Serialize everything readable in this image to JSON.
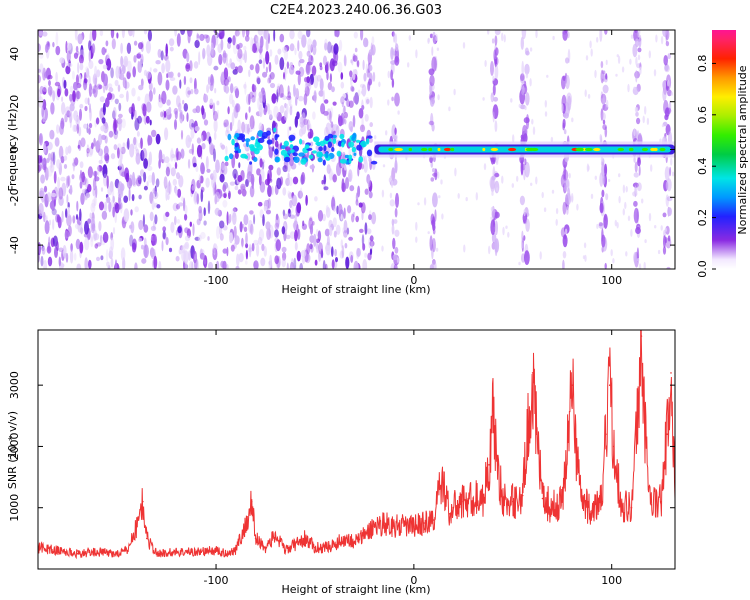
{
  "title": "C2E4.2023.240.06.36.G03",
  "chart_data": [
    {
      "type": "heatmap",
      "xlabel": "Height of straight line (km)",
      "ylabel": "Frequency (Hz)",
      "xlim": [
        -190,
        132
      ],
      "ylim": [
        -50,
        50
      ],
      "xticks": [
        -100,
        0,
        100
      ],
      "yticks": [
        -40,
        -20,
        0,
        20,
        40
      ],
      "colorbar": {
        "label": "Normalized spectral amplitude",
        "range": [
          0,
          0.93
        ],
        "ticks": [
          0.0,
          0.2,
          0.4,
          0.6,
          0.8
        ]
      },
      "features": {
        "broadband_noise_x_range": [
          -190,
          -20
        ],
        "carrier_line_frequency": 0,
        "carrier_x_range": [
          -20,
          132
        ],
        "vertical_stripe_x": [
          -10,
          10,
          41,
          56,
          77,
          96,
          113,
          128
        ]
      }
    },
    {
      "type": "line",
      "xlabel": "Height of straight line (km)",
      "ylabel": "SNR (10 * v/v)",
      "xlim": [
        -190,
        132
      ],
      "ylim": [
        0,
        3900
      ],
      "xticks": [
        -100,
        0,
        100
      ],
      "yticks": [
        1000,
        2000,
        3000
      ],
      "color": "#ee3333",
      "series": [
        {
          "x": [
            -190,
            -180,
            -170,
            -160,
            -150,
            -145,
            -140,
            -137,
            -135,
            -130,
            -120,
            -110,
            -100,
            -95,
            -90,
            -85,
            -82,
            -80,
            -75,
            -70,
            -65,
            -60,
            -55,
            -50,
            -45,
            -40,
            -35,
            -30,
            -25,
            -20,
            -15,
            -10,
            -5,
            0,
            5,
            10,
            13,
            15,
            18,
            20,
            25,
            30,
            35,
            38,
            40,
            42,
            45,
            50,
            55,
            58,
            60,
            62,
            65,
            70,
            75,
            78,
            80,
            82,
            85,
            90,
            95,
            97,
            99,
            101,
            105,
            110,
            113,
            115,
            117,
            120,
            125,
            128,
            130,
            132
          ],
          "values": [
            350,
            300,
            250,
            280,
            250,
            300,
            700,
            1100,
            500,
            250,
            280,
            280,
            300,
            250,
            320,
            700,
            1100,
            500,
            350,
            550,
            300,
            400,
            500,
            350,
            350,
            400,
            500,
            450,
            550,
            700,
            750,
            700,
            700,
            700,
            750,
            800,
            1300,
            1400,
            900,
            1000,
            1100,
            1150,
            1150,
            1700,
            2500,
            1800,
            1100,
            1100,
            1200,
            2400,
            3200,
            2200,
            1150,
            1000,
            1100,
            2200,
            3000,
            2000,
            1100,
            950,
            1100,
            2200,
            3000,
            2000,
            1050,
            1000,
            2500,
            3800,
            2200,
            1050,
            1100,
            2200,
            3200,
            1500
          ]
        }
      ]
    }
  ]
}
